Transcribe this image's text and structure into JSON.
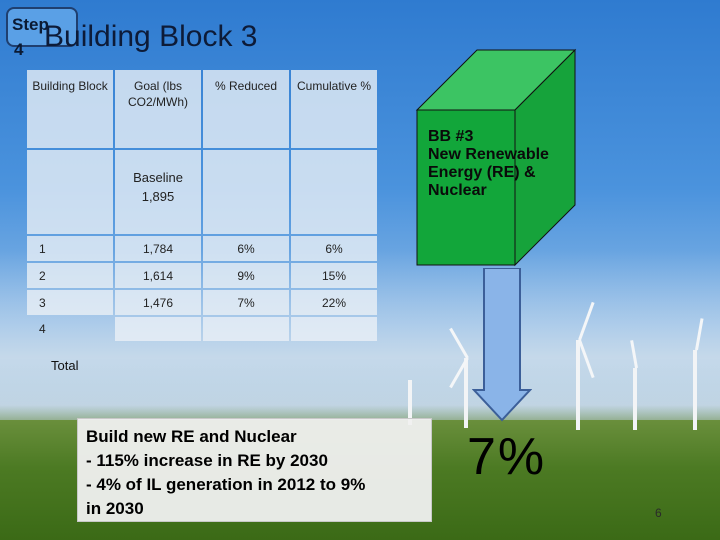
{
  "step_badge": {
    "label": "Step",
    "number": "4"
  },
  "title": "Building Block 3",
  "table": {
    "headers": [
      "Building Block",
      "Goal (lbs CO2/MWh)",
      "% Reduced",
      "Cumulative %"
    ],
    "baseline": {
      "label": "Baseline",
      "value": "1,895"
    },
    "rows": [
      {
        "block": "1",
        "goal": "1,784",
        "reduced": "6%",
        "cumulative": "6%"
      },
      {
        "block": "2",
        "goal": "1,614",
        "reduced": "9%",
        "cumulative": "15%"
      },
      {
        "block": "3",
        "goal": "1,476",
        "reduced": "7%",
        "cumulative": "22%"
      },
      {
        "block": "4",
        "goal": "",
        "reduced": "",
        "cumulative": ""
      }
    ],
    "total_label": "Total"
  },
  "cube": {
    "line1": "BB #3",
    "line2": "New Renewable",
    "line3": "Energy (RE) &",
    "line4": "Nuclear"
  },
  "result_percent": "7%",
  "textbox": {
    "line1": "Build new RE and Nuclear",
    "line2": "- 115% increase in RE by 2030",
    "line3": "- 4% of IL generation in 2012 to 9%",
    "line4": "in 2030"
  },
  "slide_number": "6",
  "colors": {
    "cube_front": "#0fa43a",
    "cube_top": "#38c45f",
    "cube_side": "#119a35",
    "arrow_fill": "#8ab4e8",
    "arrow_stroke": "#3c5f99"
  }
}
